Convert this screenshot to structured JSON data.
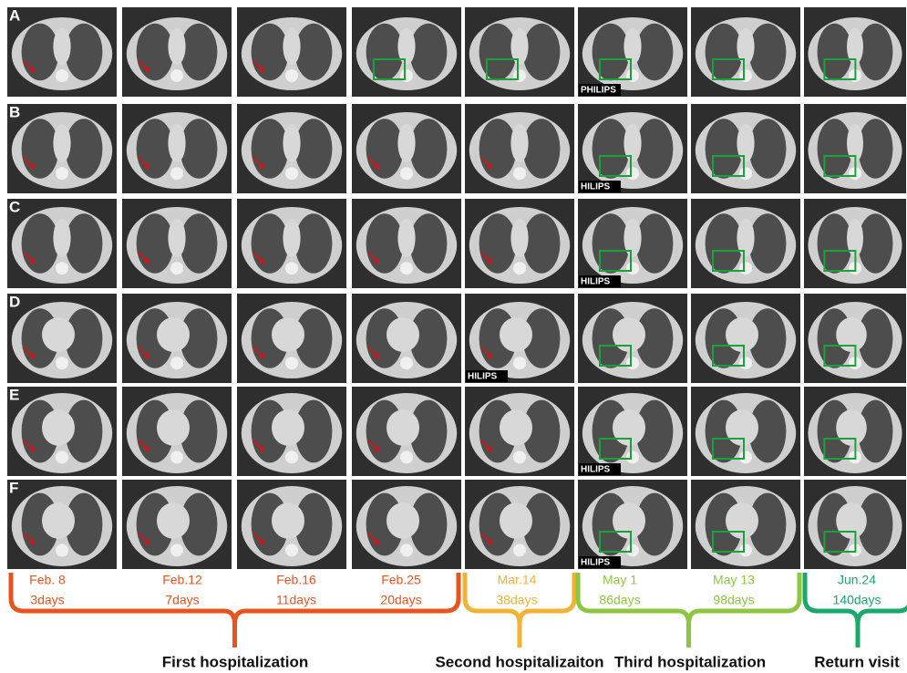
{
  "rows": [
    {
      "label": "A",
      "watermark": "PHILIPS"
    },
    {
      "label": "B",
      "watermark": "HILIPS"
    },
    {
      "label": "C",
      "watermark": "HILIPS"
    },
    {
      "label": "D",
      "watermark": "HILIPS"
    },
    {
      "label": "E",
      "watermark": "HILIPS"
    },
    {
      "label": "F",
      "watermark": "HILIPS"
    }
  ],
  "timepoints": [
    {
      "date": "Feb. 8",
      "days": "3days",
      "color": "#e8541e"
    },
    {
      "date": "Feb.12",
      "days": "7days",
      "color": "#e8541e"
    },
    {
      "date": "Feb.16",
      "days": "11days",
      "color": "#e8541e"
    },
    {
      "date": "Feb.25",
      "days": "20days",
      "color": "#e8541e"
    },
    {
      "date": "Mar.14",
      "days": "38days",
      "color": "#f2b233"
    },
    {
      "date": "May 1",
      "days": "86days",
      "color": "#8dc63f"
    },
    {
      "date": "May 13",
      "days": "98days",
      "color": "#8dc63f"
    },
    {
      "date": "Jun.24",
      "days": "140days",
      "color": "#1aa86b"
    }
  ],
  "groups": [
    {
      "label": "First hospitalization",
      "color": "#e8541e"
    },
    {
      "label": "Second hospitalizaiton",
      "color": "#f2b233"
    },
    {
      "label": "Third hospitalization",
      "color": "#8dc63f"
    },
    {
      "label": "Return visit",
      "color": "#1aa86b"
    }
  ]
}
